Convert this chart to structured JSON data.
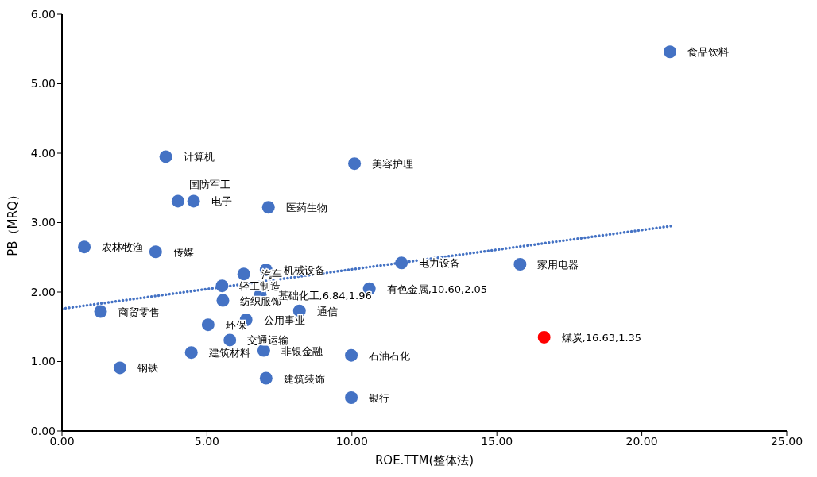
{
  "chart_data": {
    "type": "scatter",
    "xlabel": "ROE.TTM(整体法)",
    "ylabel": "PB（MRQ）",
    "xlim": [
      0,
      25
    ],
    "xticks": [
      {
        "value": 0,
        "label": "0.00"
      },
      {
        "value": 5,
        "label": "5.00"
      },
      {
        "value": 10,
        "label": "10.00"
      },
      {
        "value": 15,
        "label": "15.00"
      },
      {
        "value": 20,
        "label": "20.00"
      },
      {
        "value": 25,
        "label": "25.00"
      }
    ],
    "ylim": [
      0,
      6
    ],
    "yticks": [
      {
        "value": 0,
        "label": "0.00"
      },
      {
        "value": 1,
        "label": "1.00"
      },
      {
        "value": 2,
        "label": "2.00"
      },
      {
        "value": 3,
        "label": "3.00"
      },
      {
        "value": 4,
        "label": "4.00"
      },
      {
        "value": 5,
        "label": "5.00"
      },
      {
        "value": 6,
        "label": "6.00"
      }
    ],
    "grid": false,
    "legend": false,
    "series": [
      {
        "marker": "circle",
        "x": [
          20.97,
          3.58,
          10.09,
          4.0,
          4.54,
          7.12,
          0.77,
          3.23,
          7.04,
          6.27,
          5.52,
          5.55,
          6.84,
          10.6,
          11.71,
          15.8,
          16.63,
          1.33,
          8.19,
          6.35,
          5.04,
          5.79,
          4.46,
          6.96,
          2.0,
          9.98,
          7.04,
          9.98
        ],
        "values": [
          5.46,
          3.95,
          3.85,
          3.31,
          3.31,
          3.22,
          2.65,
          2.58,
          2.32,
          2.26,
          2.09,
          1.88,
          1.96,
          2.05,
          2.42,
          2.4,
          1.35,
          1.72,
          1.73,
          1.6,
          1.53,
          1.31,
          1.13,
          1.16,
          0.91,
          1.09,
          0.76,
          0.48
        ],
        "colors": [
          "#4472c4",
          "#4472c4",
          "#4472c4",
          "#4472c4",
          "#4472c4",
          "#4472c4",
          "#4472c4",
          "#4472c4",
          "#4472c4",
          "#4472c4",
          "#4472c4",
          "#4472c4",
          "#4472c4",
          "#4472c4",
          "#4472c4",
          "#4472c4",
          "#ff0000",
          "#4472c4",
          "#4472c4",
          "#4472c4",
          "#4472c4",
          "#4472c4",
          "#4472c4",
          "#4472c4",
          "#4472c4",
          "#4472c4",
          "#4472c4",
          "#4472c4"
        ],
        "value_labels": [
          "食品饮料",
          "计算机",
          "美容护理",
          "国防军工",
          "电子",
          "医药生物",
          "农林牧渔",
          "传媒",
          "机械设备",
          "汽车",
          "轻工制造",
          "纺织服饰",
          "基础化工,6.84,1.96",
          "有色金属,10.60,2.05",
          "电力设备",
          "家用电器",
          "煤炭,16.63,1.35",
          "商贸零售",
          "通信",
          "公用事业",
          "环保",
          "交通运输",
          "建筑材料",
          "非银金融",
          "钢铁",
          "石油石化",
          "建筑装饰",
          "银行"
        ]
      },
      {
        "type": "line",
        "x": [
          0,
          21
        ],
        "values": [
          1.76,
          2.95
        ],
        "color": "#4472c4",
        "line_style": "dotted"
      }
    ]
  }
}
